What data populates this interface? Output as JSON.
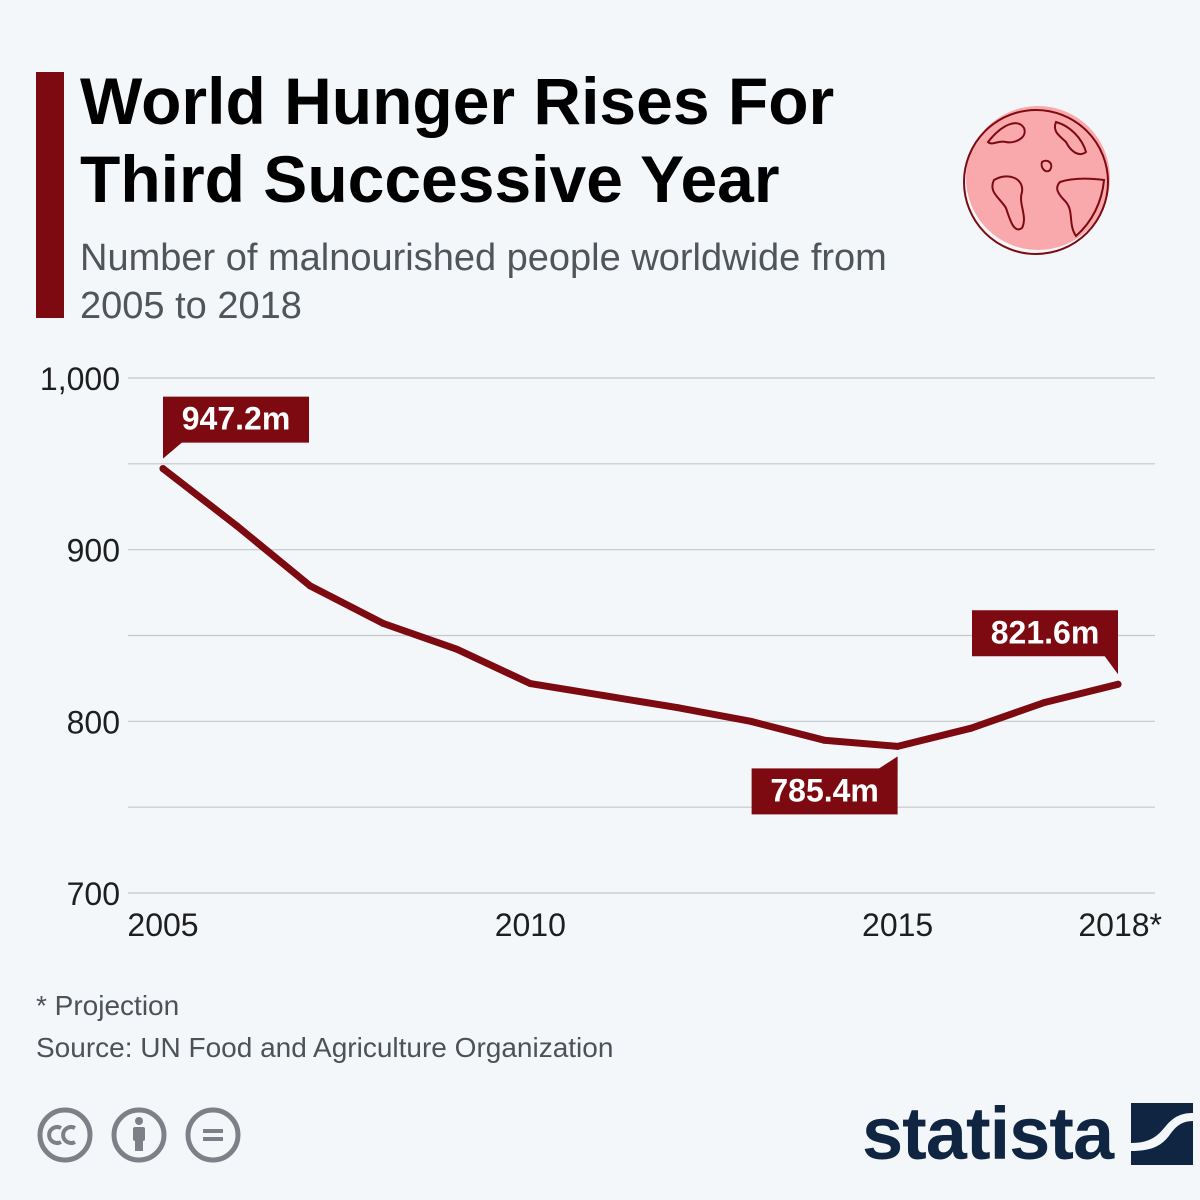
{
  "header": {
    "title": "World Hunger Rises For Third Successive Year",
    "subtitle": "Number of malnourished people worldwide from 2005 to 2018"
  },
  "colors": {
    "accent": "#7d0a10",
    "line": "#7d0a10",
    "grid": "#c4c7cb",
    "globe_fill": "#f9a9ac",
    "brand": "#0f2542"
  },
  "icons": {
    "header": "globe-icon",
    "license": [
      "creative-commons-icon",
      "attribution-icon",
      "no-derivatives-icon"
    ],
    "brand": "statista-logo-icon"
  },
  "chart_data": {
    "type": "line",
    "title": "World Hunger Rises For Third Successive Year",
    "xlabel": "",
    "ylabel": "",
    "x": [
      2005,
      2006,
      2007,
      2008,
      2009,
      2010,
      2011,
      2012,
      2013,
      2014,
      2015,
      2016,
      2017,
      2018
    ],
    "series": [
      {
        "name": "Malnourished people (millions)",
        "values": [
          947.2,
          914,
          879,
          857,
          842,
          822,
          815,
          808,
          800,
          789,
          785.4,
          796,
          811,
          821.6
        ]
      }
    ],
    "ylim": [
      700,
      1000
    ],
    "yticks": [
      700,
      800,
      900,
      1000
    ],
    "ytick_labels": [
      "700",
      "800",
      "900",
      "1,000"
    ],
    "xticks": [
      2005,
      2010,
      2015,
      2018
    ],
    "xtick_labels": [
      "2005",
      "2010",
      "2015",
      "2018*"
    ],
    "grid": true,
    "annotations": [
      {
        "x": 2005,
        "y": 947.2,
        "text": "947.2m",
        "position": "above"
      },
      {
        "x": 2015,
        "y": 785.4,
        "text": "785.4m",
        "position": "below"
      },
      {
        "x": 2018,
        "y": 821.6,
        "text": "821.6m",
        "position": "above"
      }
    ]
  },
  "footer": {
    "note": "* Projection",
    "source": "Source: UN Food and Agriculture Organization",
    "brand_name": "statista"
  }
}
